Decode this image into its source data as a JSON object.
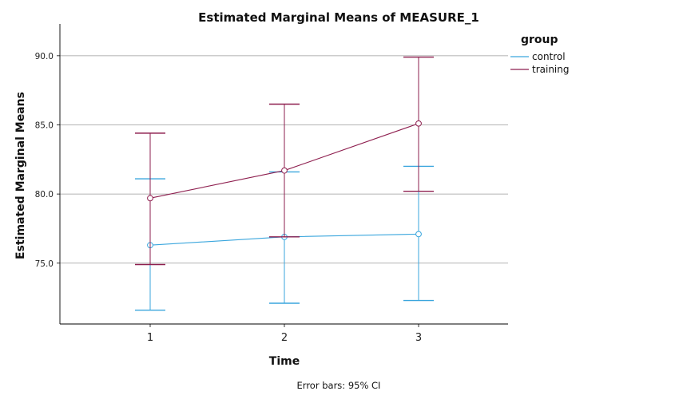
{
  "chart_data": {
    "type": "line",
    "title": "Estimated Marginal Means of MEASURE_1",
    "xlabel": "Time",
    "ylabel": "Estimated Marginal Means",
    "categories": [
      "1",
      "2",
      "3"
    ],
    "yticks": [
      "75.0",
      "80.0",
      "85.0",
      "90.0"
    ],
    "ylim": [
      70.6,
      92.3
    ],
    "grid": true,
    "legend": {
      "title": "group",
      "position": "top-right"
    },
    "footnote": "Error bars: 95% CI",
    "series": [
      {
        "name": "control",
        "color": "#3aa6dd",
        "values": [
          76.3,
          76.9,
          77.1
        ],
        "ci_lower": [
          71.6,
          72.1,
          72.3
        ],
        "ci_upper": [
          81.1,
          81.6,
          82.0
        ]
      },
      {
        "name": "training",
        "color": "#8e1f4f",
        "values": [
          79.7,
          81.7,
          85.1
        ],
        "ci_lower": [
          74.9,
          76.9,
          80.2
        ],
        "ci_upper": [
          84.4,
          86.5,
          89.9
        ]
      }
    ]
  }
}
